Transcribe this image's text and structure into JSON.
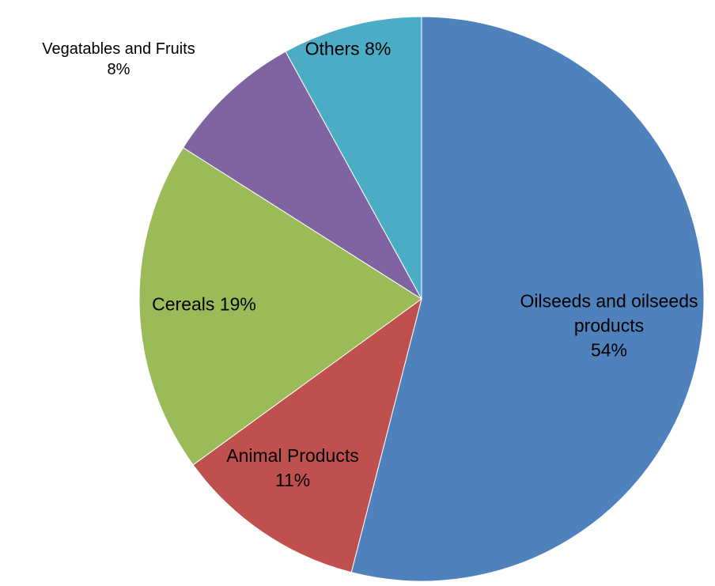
{
  "chart_data": {
    "type": "pie",
    "categories": [
      "Oilseeds and oilseeds products",
      "Animal Products",
      "Cereals",
      "Vegatables and Fruits",
      "Others"
    ],
    "values": [
      54,
      11,
      19,
      8,
      8
    ],
    "value_labels": [
      "54%",
      "11%",
      "19%",
      "8%",
      "8%"
    ],
    "colors": [
      "#4f81bd",
      "#c0504d",
      "#9bbb59",
      "#8064a2",
      "#4bacc6"
    ]
  }
}
